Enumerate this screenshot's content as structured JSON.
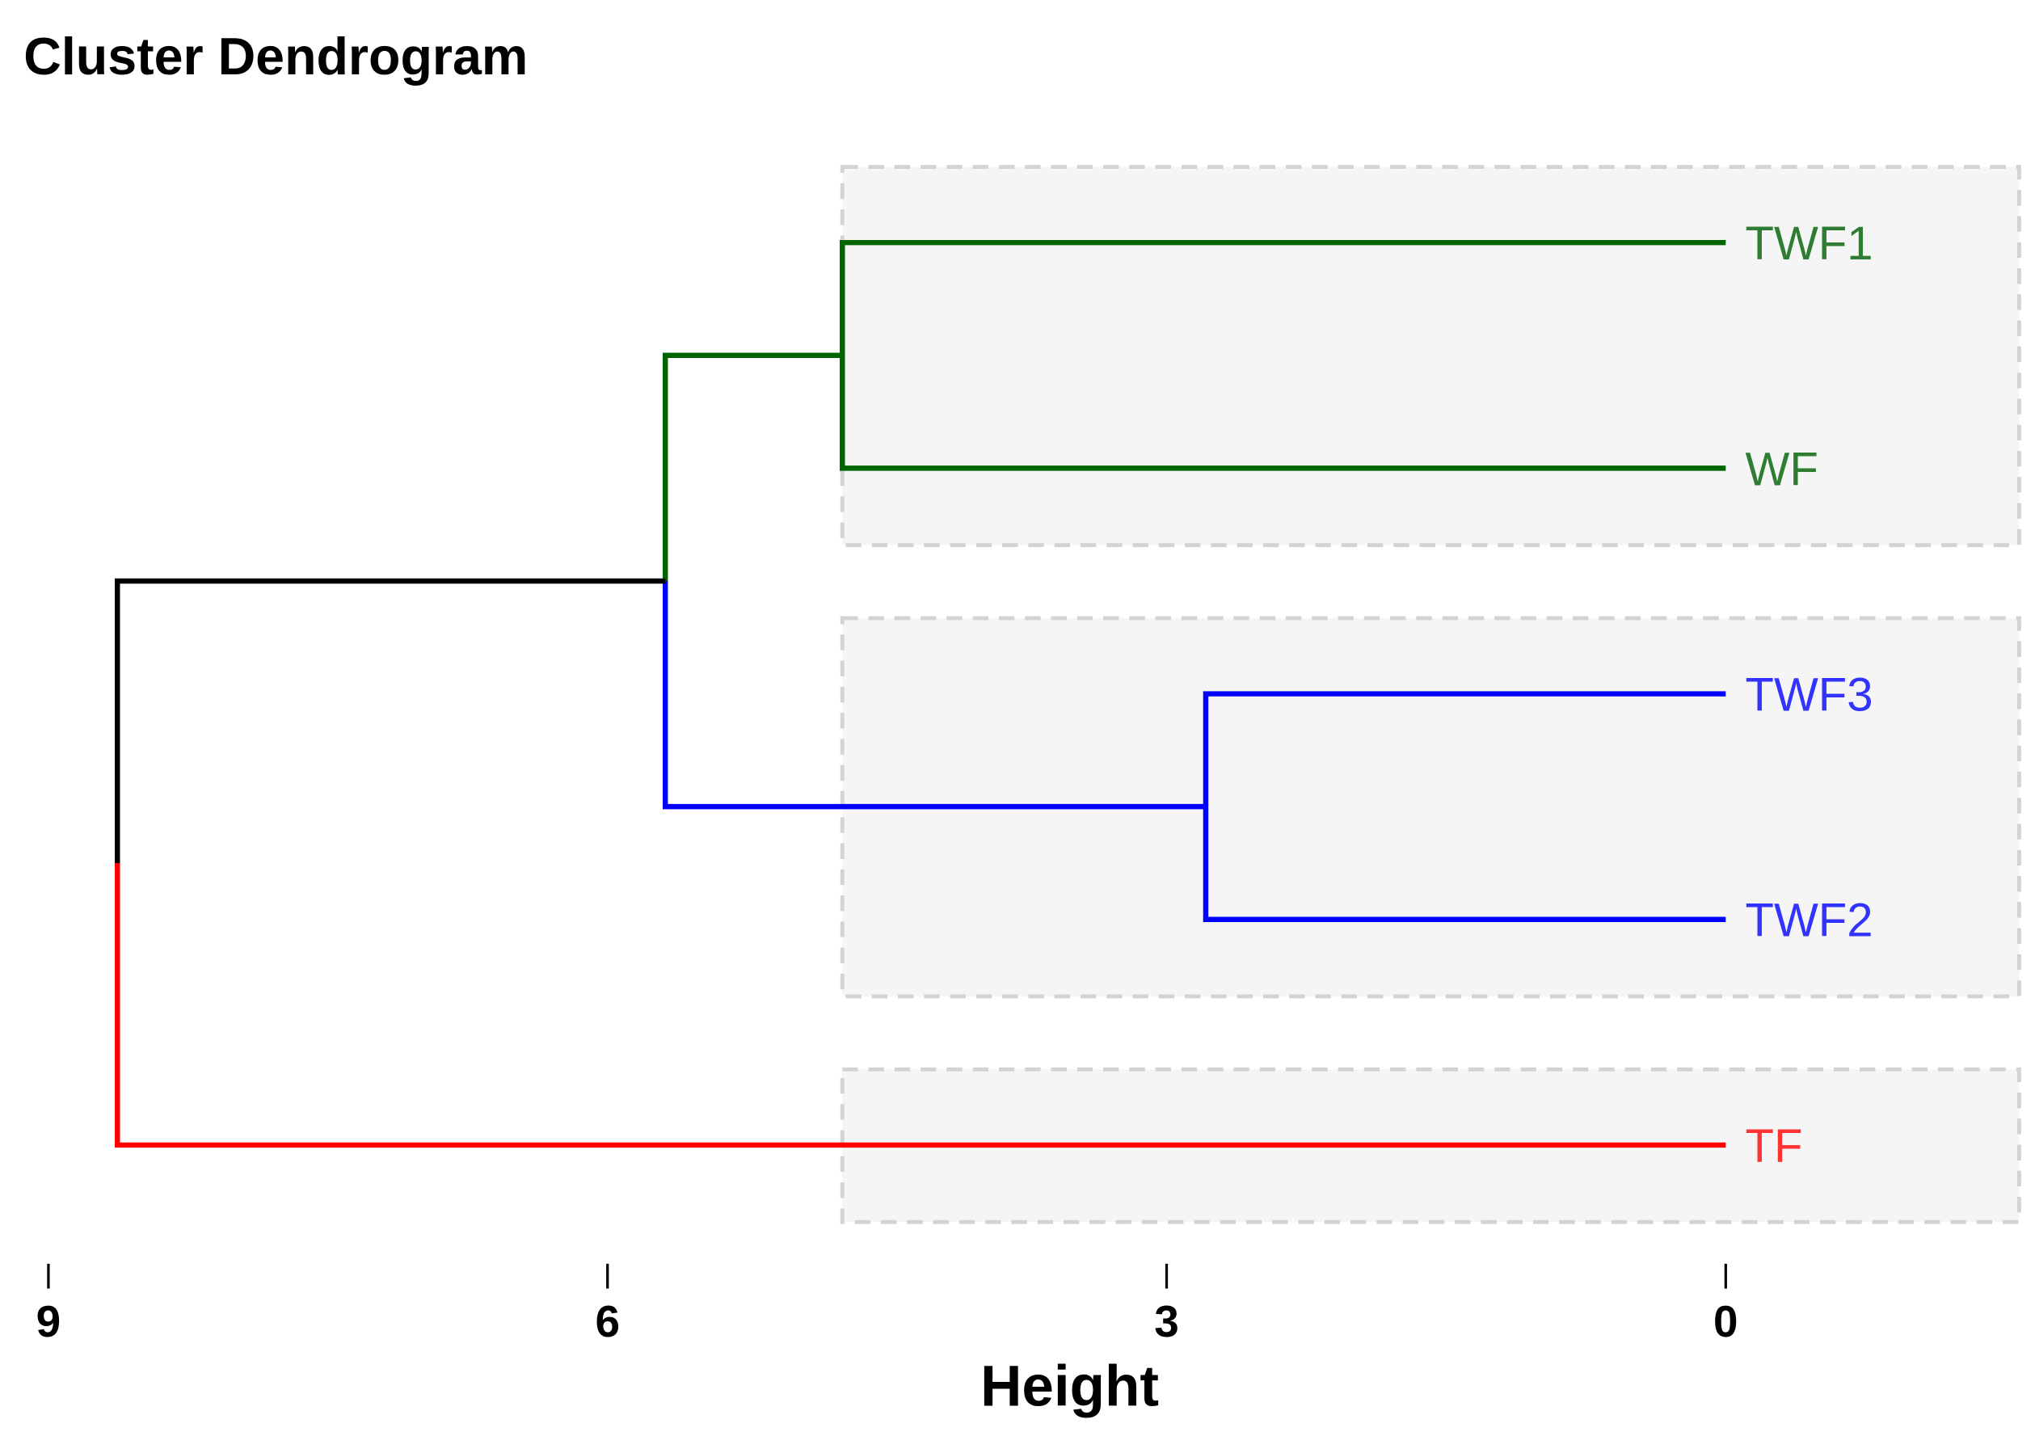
{
  "chart_data": {
    "type": "dendrogram",
    "title": "Cluster Dendrogram",
    "xlabel": "Height",
    "orientation": "horizontal",
    "xlim": [
      9,
      0
    ],
    "ticks": [
      9,
      6,
      3,
      0
    ],
    "tick_labels": [
      "9",
      "6",
      "3",
      "0"
    ],
    "grid": false,
    "leaves": [
      {
        "label": "TWF1",
        "cluster": 1
      },
      {
        "label": "WF",
        "cluster": 1
      },
      {
        "label": "TWF3",
        "cluster": 2
      },
      {
        "label": "TWF2",
        "cluster": 2
      },
      {
        "label": "TF",
        "cluster": 3
      }
    ],
    "merges": [
      {
        "left": "TWF1",
        "right": "WF",
        "height": 4.74
      },
      {
        "left": "TWF3",
        "right": "TWF2",
        "height": 2.79
      },
      {
        "left": "TWF1+WF",
        "right": "TWF3+TWF2",
        "height": 5.69
      },
      {
        "left": "TWF1+WF+TWF3+TWF2",
        "right": "TF",
        "height": 8.63
      }
    ],
    "clusters": [
      {
        "id": 1,
        "members": [
          "TWF1",
          "WF"
        ],
        "color": "#006400",
        "label_color": "#2e7d32"
      },
      {
        "id": 2,
        "members": [
          "TWF3",
          "TWF2"
        ],
        "color": "#0000ff",
        "label_color": "#3333ff"
      },
      {
        "id": 3,
        "members": [
          "TF"
        ],
        "color": "#ff0000",
        "label_color": "#ff3333"
      }
    ],
    "root_color": "#000000",
    "rect_fill": "#f5f5f5",
    "rect_border": "#d3d3d3"
  }
}
